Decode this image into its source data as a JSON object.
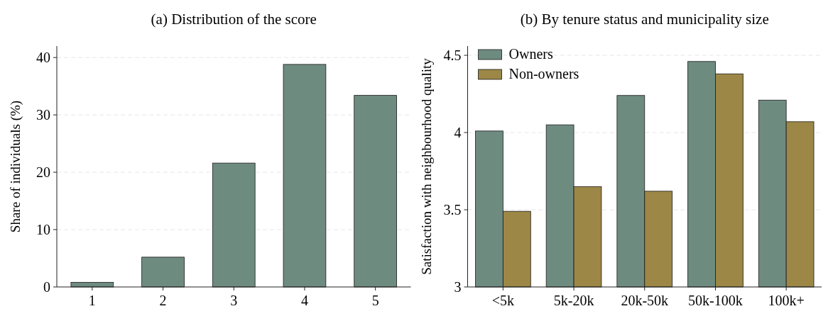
{
  "chart_data": [
    {
      "type": "bar",
      "title": "(a) Distribution of the score",
      "ylabel": "Share of individuals (%)",
      "categories": [
        "1",
        "2",
        "3",
        "4",
        "5"
      ],
      "series": [
        {
          "color": "#6e8b80",
          "values": [
            0.8,
            5.2,
            21.6,
            38.8,
            33.4
          ]
        }
      ],
      "ylim": [
        0,
        42
      ],
      "yticks": [
        0,
        10,
        20,
        30,
        40
      ],
      "grid": "y",
      "legend": false
    },
    {
      "type": "bar",
      "title": "(b) By tenure status and municipality size",
      "ylabel": "Satisfaction with neighbourhood quality",
      "categories": [
        "<5k",
        "5k-20k",
        "20k-50k",
        "50k-100k",
        "100k+"
      ],
      "series": [
        {
          "name": "Owners",
          "color": "#6e8b80",
          "values": [
            4.01,
            4.05,
            4.24,
            4.46,
            4.21
          ]
        },
        {
          "name": "Non-owners",
          "color": "#9c8746",
          "values": [
            3.49,
            3.65,
            3.62,
            4.38,
            4.07
          ]
        }
      ],
      "ylim": [
        3,
        4.56
      ],
      "yticks": [
        3,
        3.5,
        4,
        4.5
      ],
      "grid": "y",
      "legend": "top left"
    }
  ]
}
